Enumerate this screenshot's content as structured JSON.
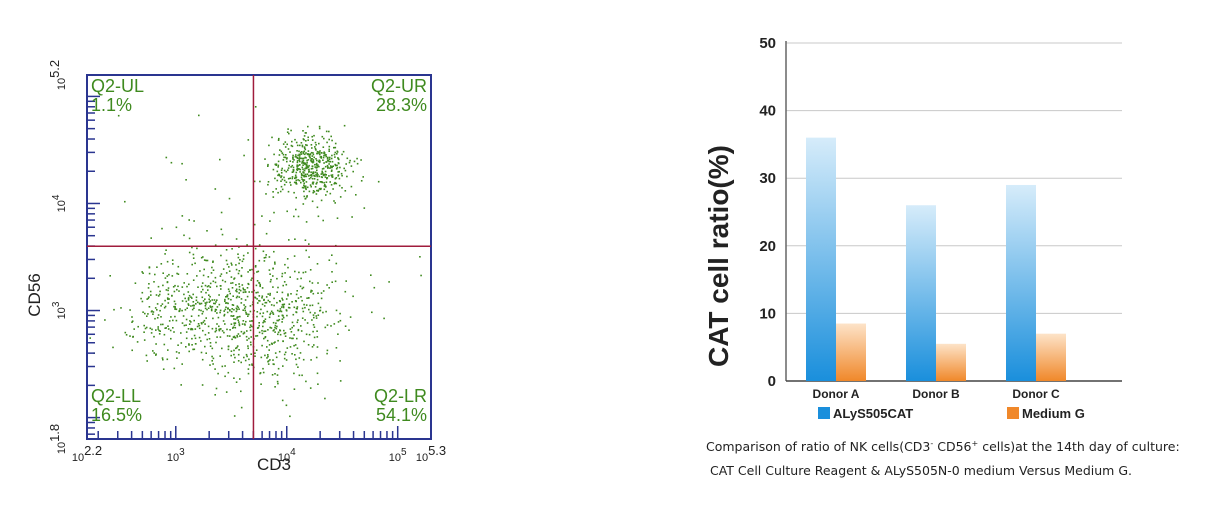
{
  "chart_data": [
    {
      "type": "scatter",
      "xlabel": "CD3",
      "ylabel": "CD56",
      "x_scale": "log",
      "y_scale": "log",
      "xlim": [
        2.2,
        5.3
      ],
      "ylim": [
        1.8,
        5.2
      ],
      "x_ticks": [
        {
          "value": 2.2,
          "label": "10",
          "exp": "2.2"
        },
        {
          "value": 3,
          "label": "10",
          "exp": "3"
        },
        {
          "value": 4,
          "label": "10",
          "exp": "4"
        },
        {
          "value": 5,
          "label": "10",
          "exp": "5"
        },
        {
          "value": 5.3,
          "label": "10",
          "exp": "5.3"
        }
      ],
      "y_ticks": [
        {
          "value": 1.8,
          "label": "10",
          "exp": "1.8"
        },
        {
          "value": 3,
          "label": "10",
          "exp": "3"
        },
        {
          "value": 4,
          "label": "10",
          "exp": "4"
        },
        {
          "value": 5.2,
          "label": "10",
          "exp": "5.2"
        }
      ],
      "gate": {
        "x": 3.7,
        "y": 3.6
      },
      "quadrants": [
        {
          "name": "Q2-UL",
          "percent": "1.1%",
          "position": "top-left"
        },
        {
          "name": "Q2-UR",
          "percent": "28.3%",
          "position": "top-right"
        },
        {
          "name": "Q2-LL",
          "percent": "16.5%",
          "position": "bottom-left"
        },
        {
          "name": "Q2-LR",
          "percent": "54.1%",
          "position": "bottom-right"
        }
      ],
      "point_color": "#3f8a1f",
      "frame_color": "#2a3590",
      "gate_color": "#a01c3c",
      "label_color": "#3f8a1f"
    },
    {
      "type": "bar",
      "categories": [
        "Donor A",
        "Donor B",
        "Donor C"
      ],
      "series": [
        {
          "name": "ALyS505CAT",
          "values": [
            36,
            26,
            29
          ],
          "color": "#1a8fdc"
        },
        {
          "name": "Medium G",
          "values": [
            8.5,
            5.5,
            7
          ],
          "color": "#f0882a"
        }
      ],
      "ylabel": "CAT cell ratio(%)",
      "ylim": [
        0,
        50
      ],
      "yticks": [
        0,
        10,
        20,
        30,
        40,
        50
      ],
      "grid": true,
      "legend_position": "bottom"
    }
  ],
  "caption": {
    "line1_pre": "Comparison of ratio of NK cells(CD3",
    "sup1": "-",
    "mid": " CD56",
    "sup2": "+",
    "line1_post": " cells)at the 14th day of culture:",
    "line2": "CAT Cell Culture Reagent & ALyS505N-0 medium Versus Medium G."
  }
}
